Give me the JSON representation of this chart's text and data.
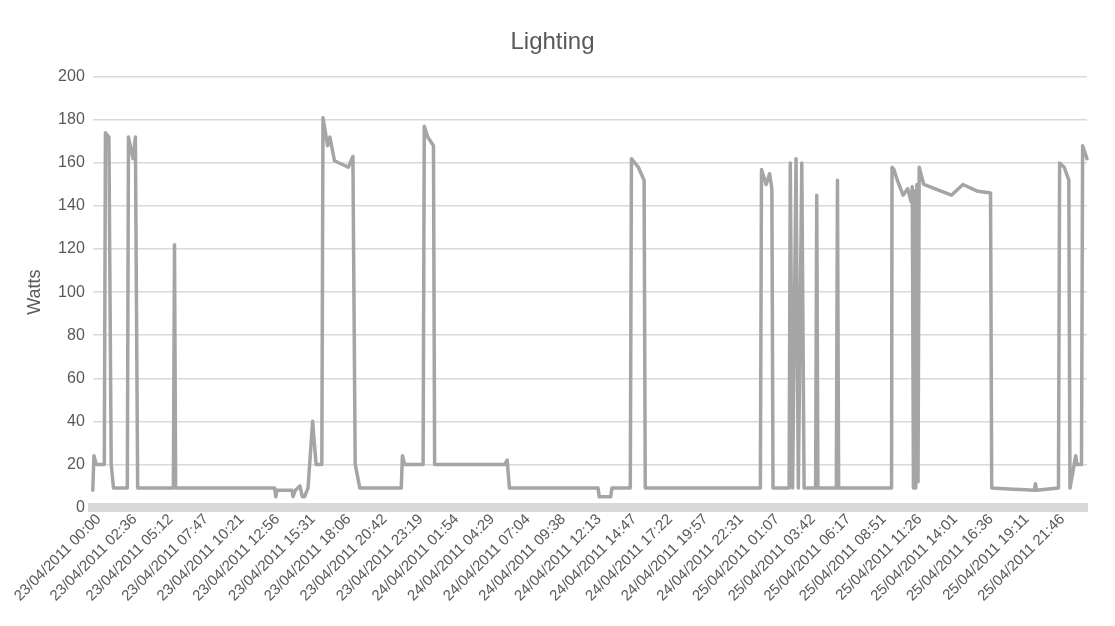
{
  "chart_data": {
    "type": "line",
    "title": "Lighting",
    "ylabel": "Watts",
    "grid": "y",
    "legend": false,
    "marker": "none",
    "line_style": "solid",
    "ylim": [
      0,
      200
    ],
    "yticks": [
      0,
      20,
      40,
      60,
      80,
      100,
      120,
      140,
      160,
      180,
      200
    ],
    "xlim": [
      "2011-04-23T00:00",
      "2011-04-25T23:59"
    ],
    "xticks": [
      {
        "value": "2011-04-23T00:00",
        "label": "23/04/2011 00:00"
      },
      {
        "value": "2011-04-23T02:36",
        "label": "23/04/2011 02:36"
      },
      {
        "value": "2011-04-23T05:12",
        "label": "23/04/2011 05:12"
      },
      {
        "value": "2011-04-23T07:47",
        "label": "23/04/2011 07:47"
      },
      {
        "value": "2011-04-23T10:21",
        "label": "23/04/2011 10:21"
      },
      {
        "value": "2011-04-23T12:56",
        "label": "23/04/2011 12:56"
      },
      {
        "value": "2011-04-23T15:31",
        "label": "23/04/2011 15:31"
      },
      {
        "value": "2011-04-23T18:06",
        "label": "23/04/2011 18:06"
      },
      {
        "value": "2011-04-23T20:42",
        "label": "23/04/2011 20:42"
      },
      {
        "value": "2011-04-23T23:19",
        "label": "23/04/2011 23:19"
      },
      {
        "value": "2011-04-24T01:54",
        "label": "24/04/2011 01:54"
      },
      {
        "value": "2011-04-24T04:29",
        "label": "24/04/2011 04:29"
      },
      {
        "value": "2011-04-24T07:04",
        "label": "24/04/2011 07:04"
      },
      {
        "value": "2011-04-24T09:38",
        "label": "24/04/2011 09:38"
      },
      {
        "value": "2011-04-24T12:13",
        "label": "24/04/2011 12:13"
      },
      {
        "value": "2011-04-24T14:47",
        "label": "24/04/2011 14:47"
      },
      {
        "value": "2011-04-24T17:22",
        "label": "24/04/2011 17:22"
      },
      {
        "value": "2011-04-24T19:57",
        "label": "24/04/2011 19:57"
      },
      {
        "value": "2011-04-24T22:31",
        "label": "24/04/2011 22:31"
      },
      {
        "value": "2011-04-25T01:07",
        "label": "25/04/2011 01:07"
      },
      {
        "value": "2011-04-25T03:42",
        "label": "25/04/2011 03:42"
      },
      {
        "value": "2011-04-25T06:17",
        "label": "25/04/2011 06:17"
      },
      {
        "value": "2011-04-25T08:51",
        "label": "25/04/2011 08:51"
      },
      {
        "value": "2011-04-25T11:26",
        "label": "25/04/2011 11:26"
      },
      {
        "value": "2011-04-25T14:01",
        "label": "25/04/2011 14:01"
      },
      {
        "value": "2011-04-25T16:36",
        "label": "25/04/2011 16:36"
      },
      {
        "value": "2011-04-25T19:11",
        "label": "25/04/2011 19:11"
      },
      {
        "value": "2011-04-25T21:46",
        "label": "25/04/2011 21:46"
      }
    ],
    "x": [
      "2011-04-23T00:00",
      "2011-04-23T00:05",
      "2011-04-23T00:15",
      "2011-04-23T00:50",
      "2011-04-23T00:55",
      "2011-04-23T01:10",
      "2011-04-23T01:20",
      "2011-04-23T01:30",
      "2011-04-23T02:30",
      "2011-04-23T02:35",
      "2011-04-23T02:55",
      "2011-04-23T03:05",
      "2011-04-23T03:15",
      "2011-04-23T05:50",
      "2011-04-23T05:55",
      "2011-04-23T06:00",
      "2011-04-23T13:10",
      "2011-04-23T13:15",
      "2011-04-23T13:20",
      "2011-04-23T14:25",
      "2011-04-23T14:30",
      "2011-04-23T14:40",
      "2011-04-23T15:00",
      "2011-04-23T15:10",
      "2011-04-23T15:20",
      "2011-04-23T15:35",
      "2011-04-23T15:55",
      "2011-04-23T16:10",
      "2011-04-23T16:35",
      "2011-04-23T16:40",
      "2011-04-23T17:00",
      "2011-04-23T17:10",
      "2011-04-23T17:30",
      "2011-04-23T18:30",
      "2011-04-23T18:50",
      "2011-04-23T19:00",
      "2011-04-23T19:20",
      "2011-04-23T22:20",
      "2011-04-23T22:25",
      "2011-04-23T22:35",
      "2011-04-23T23:55",
      "2011-04-24T00:00",
      "2011-04-24T00:15",
      "2011-04-24T00:40",
      "2011-04-24T00:45",
      "2011-04-24T05:50",
      "2011-04-24T06:00",
      "2011-04-24T06:10",
      "2011-04-24T12:35",
      "2011-04-24T12:40",
      "2011-04-24T13:30",
      "2011-04-24T13:35",
      "2011-04-24T14:55",
      "2011-04-24T15:00",
      "2011-04-24T15:30",
      "2011-04-24T15:55",
      "2011-04-24T16:00",
      "2011-04-25T00:20",
      "2011-04-25T00:25",
      "2011-04-25T00:45",
      "2011-04-25T01:00",
      "2011-04-25T01:10",
      "2011-04-25T01:15",
      "2011-04-25T02:25",
      "2011-04-25T02:30",
      "2011-04-25T02:40",
      "2011-04-25T02:55",
      "2011-04-25T03:05",
      "2011-04-25T03:20",
      "2011-04-25T03:30",
      "2011-04-25T04:20",
      "2011-04-25T04:25",
      "2011-04-25T04:30",
      "2011-04-25T05:50",
      "2011-04-25T05:55",
      "2011-04-25T06:00",
      "2011-04-25T09:50",
      "2011-04-25T09:52",
      "2011-04-25T09:55",
      "2011-04-25T10:00",
      "2011-04-25T10:15",
      "2011-04-25T10:40",
      "2011-04-25T11:00",
      "2011-04-25T11:15",
      "2011-04-25T11:20",
      "2011-04-25T11:25",
      "2011-04-25T11:30",
      "2011-04-25T11:35",
      "2011-04-25T11:40",
      "2011-04-25T11:45",
      "2011-04-25T11:50",
      "2011-04-25T11:53",
      "2011-04-25T12:10",
      "2011-04-25T13:00",
      "2011-04-25T14:10",
      "2011-04-25T15:00",
      "2011-04-25T16:00",
      "2011-04-25T17:00",
      "2011-04-25T17:05",
      "2011-04-25T20:10",
      "2011-04-25T20:15",
      "2011-04-25T20:20",
      "2011-04-25T21:55",
      "2011-04-25T22:00",
      "2011-04-25T22:20",
      "2011-04-25T22:40",
      "2011-04-25T22:45",
      "2011-04-25T23:10",
      "2011-04-25T23:15",
      "2011-04-25T23:35",
      "2011-04-25T23:40",
      "2011-04-25T23:59"
    ],
    "series": [
      {
        "color": "#a5a5a5",
        "values": [
          8,
          24,
          20,
          20,
          174,
          172,
          20,
          9,
          9,
          172,
          162,
          172,
          9,
          9,
          122,
          9,
          9,
          5,
          8,
          8,
          5,
          8,
          10,
          5,
          5,
          9,
          40,
          20,
          20,
          181,
          168,
          172,
          161,
          158,
          163,
          20,
          9,
          9,
          24,
          20,
          20,
          177,
          172,
          168,
          20,
          20,
          22,
          9,
          9,
          5,
          5,
          9,
          9,
          162,
          158,
          152,
          9,
          9,
          157,
          150,
          155,
          148,
          9,
          9,
          160,
          9,
          162,
          9,
          160,
          9,
          9,
          145,
          9,
          9,
          152,
          9,
          9,
          158,
          158,
          157,
          152,
          145,
          148,
          142,
          149,
          9,
          147,
          9,
          150,
          12,
          158,
          158,
          150,
          148,
          145,
          150,
          147,
          146,
          9,
          8,
          11,
          8,
          9,
          160,
          158,
          152,
          9,
          24,
          20,
          20,
          168,
          162
        ]
      }
    ]
  }
}
